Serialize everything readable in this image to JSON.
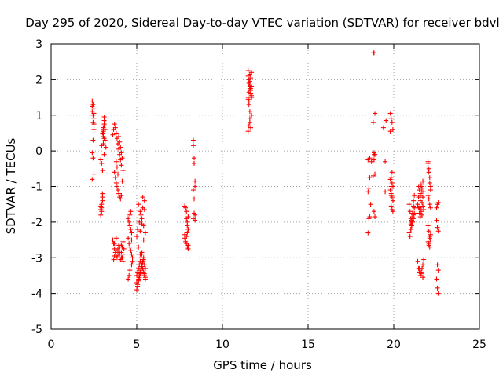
{
  "chart_data": {
    "type": "scatter",
    "title": "Day 295 of 2020, Sidereal Day-to-day VTEC variation (SDTVAR) for receiver bdvl",
    "xlabel": "GPS time / hours",
    "ylabel": "SDTVAR / TECUs",
    "xlim": [
      0,
      25
    ],
    "ylim": [
      -5,
      3
    ],
    "xticks": [
      0,
      5,
      10,
      15,
      20,
      25
    ],
    "yticks": [
      -5,
      -4,
      -3,
      -2,
      -1,
      0,
      1,
      2,
      3
    ],
    "grid": true,
    "marker": "+",
    "marker_color": "#ff0000",
    "series": [
      {
        "name": "SDTVAR",
        "x": [
          2.4,
          2.4,
          2.4,
          2.45,
          2.45,
          2.45,
          2.5,
          2.5,
          2.5,
          2.5,
          2.5,
          2.4,
          2.45,
          2.5,
          2.4,
          2.45,
          2.9,
          2.9,
          2.9,
          2.95,
          2.95,
          2.95,
          3.0,
          3.0,
          3.0,
          3.05,
          3.05,
          3.05,
          3.1,
          3.1,
          3.1,
          2.9,
          2.95,
          3.0,
          3.05,
          3.1,
          3.1,
          3.05,
          3.0,
          2.95,
          3.1,
          3.15,
          3.15,
          3.2,
          3.6,
          3.65,
          3.7,
          3.75,
          3.8,
          3.85,
          3.9,
          3.95,
          4.0,
          4.05,
          4.1,
          3.7,
          3.75,
          3.8,
          3.85,
          3.9,
          3.95,
          4.0,
          4.05,
          4.1,
          4.15,
          4.2,
          4.15,
          4.1,
          4.05,
          4.0,
          3.95,
          3.9,
          3.85,
          3.8,
          3.6,
          3.65,
          3.7,
          3.75,
          3.8,
          3.85,
          3.9,
          3.95,
          4.0,
          4.05,
          4.1,
          4.15,
          4.2,
          4.25,
          4.2,
          4.1,
          4.0,
          3.9,
          3.8,
          3.7,
          3.65,
          3.7,
          3.8,
          3.9,
          4.0,
          4.1,
          4.15,
          4.2,
          4.5,
          4.55,
          4.6,
          4.65,
          4.7,
          4.5,
          4.55,
          4.6,
          4.65,
          4.7,
          4.75,
          4.75,
          4.7,
          4.6,
          4.55,
          4.5,
          4.6,
          4.65,
          4.7,
          5.0,
          5.0,
          5.05,
          5.05,
          5.1,
          5.1,
          5.15,
          5.15,
          5.2,
          5.2,
          5.25,
          5.25,
          5.3,
          5.3,
          5.35,
          5.35,
          5.4,
          5.4,
          5.45,
          5.45,
          5.5,
          5.5,
          5.0,
          5.05,
          5.1,
          5.15,
          5.2,
          5.25,
          5.3,
          5.35,
          5.4,
          5.45,
          5.5,
          5.1,
          5.2,
          5.3,
          5.4,
          5.5,
          5.45,
          5.35,
          5.25,
          5.15,
          5.05,
          5.0,
          5.1,
          5.2,
          5.3,
          5.4,
          5.2,
          5.3,
          5.35,
          5.45,
          7.8,
          7.8,
          7.85,
          7.85,
          7.9,
          7.9,
          7.95,
          7.95,
          8.0,
          8.0,
          7.8,
          7.85,
          7.9,
          7.95,
          8.0,
          7.9,
          7.95,
          8.0,
          8.3,
          8.3,
          8.35,
          8.35,
          8.4,
          8.4,
          8.3,
          8.35,
          8.4,
          8.3,
          8.35,
          8.4,
          11.5,
          11.5,
          11.55,
          11.55,
          11.6,
          11.6,
          11.65,
          11.65,
          11.7,
          11.7,
          11.5,
          11.55,
          11.6,
          11.65,
          11.7,
          11.5,
          11.55,
          11.6,
          11.65,
          11.7,
          11.6,
          11.6,
          11.55,
          11.65,
          11.5,
          11.7,
          11.6,
          11.55,
          11.65,
          11.6,
          18.5,
          18.55,
          18.6,
          18.65,
          18.5,
          18.55,
          18.6,
          18.7,
          18.6,
          18.5,
          18.8,
          18.85,
          18.9,
          18.8,
          18.85,
          18.9,
          18.8,
          18.85,
          18.9,
          18.85,
          18.9,
          18.85,
          19.4,
          19.5,
          19.5,
          19.55,
          19.8,
          19.85,
          19.9,
          19.95,
          19.8,
          19.85,
          19.9,
          19.95,
          19.8,
          19.85,
          19.9,
          19.95,
          19.85,
          19.9,
          19.95,
          19.85,
          19.9,
          19.8,
          19.85,
          20.9,
          20.95,
          21.0,
          21.05,
          21.1,
          21.15,
          21.2,
          20.9,
          20.95,
          21.0,
          21.05,
          21.1,
          21.15,
          21.2,
          21.0,
          21.05,
          21.1,
          21.15,
          21.0,
          21.05,
          21.1,
          21.15,
          21.2,
          21.4,
          21.45,
          21.5,
          21.55,
          21.6,
          21.65,
          21.7,
          21.75,
          21.4,
          21.45,
          21.5,
          21.55,
          21.6,
          21.65,
          21.7,
          21.75,
          21.45,
          21.5,
          21.55,
          21.6,
          21.65,
          21.7,
          21.5,
          21.6,
          21.7,
          21.45,
          21.55,
          21.65,
          21.75,
          21.5,
          21.6,
          21.7,
          21.6,
          21.65,
          21.55,
          22.0,
          22.0,
          22.05,
          22.05,
          22.1,
          22.1,
          22.15,
          22.15,
          22.0,
          22.05,
          22.1,
          22.15,
          22.0,
          22.05,
          22.1,
          22.15,
          22.05,
          22.1,
          22.0,
          22.15,
          22.1,
          22.05,
          22.5,
          22.55,
          22.6,
          22.5,
          22.55,
          22.6,
          22.55,
          22.6,
          22.5,
          22.55,
          22.6
        ],
        "y": [
          1.4,
          1.25,
          1.1,
          1.3,
          1.0,
          0.8,
          1.2,
          0.6,
          0.9,
          1.05,
          0.75,
          -0.05,
          -0.2,
          -0.65,
          -0.8,
          0.3,
          -1.55,
          -1.65,
          -1.8,
          -1.7,
          -1.6,
          -1.5,
          -1.4,
          -1.3,
          -1.2,
          0.2,
          0.4,
          0.55,
          0.7,
          0.85,
          0.95,
          -0.25,
          0.15,
          0.5,
          0.65,
          0.35,
          -0.1,
          0.6,
          -0.55,
          -0.35,
          0.75,
          0.6,
          0.3,
          0.1,
          0.45,
          0.6,
          0.75,
          0.65,
          0.5,
          0.35,
          0.2,
          0.05,
          -0.1,
          -0.25,
          -0.4,
          -0.6,
          -0.75,
          -0.9,
          -1.0,
          -1.1,
          -1.2,
          -1.3,
          -1.35,
          -1.25,
          -0.85,
          -0.55,
          -0.2,
          -0.05,
          0.1,
          0.25,
          0.4,
          -0.65,
          -0.45,
          -0.3,
          -2.5,
          -2.6,
          -2.75,
          -2.85,
          -2.95,
          -3.0,
          -2.8,
          -2.65,
          -2.9,
          -3.05,
          -2.85,
          -2.7,
          -2.55,
          -2.75,
          -3.1,
          -3.0,
          -2.7,
          -2.9,
          -2.8,
          -2.95,
          -3.05,
          -2.6,
          -2.45,
          -2.75,
          -2.85,
          -2.65,
          -3.0,
          -2.9,
          -1.9,
          -2.0,
          -2.1,
          -2.2,
          -2.3,
          -2.45,
          -2.6,
          -2.7,
          -2.8,
          -2.9,
          -3.0,
          -3.1,
          -3.2,
          -3.35,
          -3.5,
          -3.6,
          -1.8,
          -1.7,
          -2.5,
          -3.5,
          -3.7,
          -3.4,
          -3.8,
          -3.3,
          -3.6,
          -3.2,
          -3.5,
          -3.1,
          -3.4,
          -3.0,
          -3.3,
          -2.9,
          -3.2,
          -3.1,
          -3.3,
          -3.0,
          -3.4,
          -3.2,
          -3.5,
          -3.3,
          -3.6,
          -3.9,
          -3.75,
          -3.65,
          -3.55,
          -3.45,
          -3.35,
          -3.25,
          -3.15,
          -3.05,
          -3.45,
          -3.55,
          -1.5,
          -1.7,
          -1.9,
          -2.1,
          -2.3,
          -1.4,
          -1.6,
          -1.8,
          -2.0,
          -2.2,
          -2.4,
          -2.7,
          -2.9,
          -2.85,
          -2.5,
          -2.25,
          -2.05,
          -1.3,
          -1.65,
          -1.55,
          -2.35,
          -1.6,
          -2.5,
          -1.9,
          -2.6,
          -2.1,
          -2.7,
          -2.2,
          -2.75,
          -2.45,
          -2.55,
          -2.4,
          -2.3,
          -2.65,
          -1.7,
          -2.0,
          -1.85,
          0.3,
          0.15,
          -0.2,
          -0.35,
          -0.85,
          -1.0,
          -1.1,
          -1.35,
          -1.8,
          -1.9,
          -1.75,
          -1.95,
          2.25,
          2.1,
          2.0,
          1.9,
          1.85,
          1.75,
          1.7,
          1.6,
          1.55,
          1.5,
          1.45,
          1.65,
          1.8,
          2.05,
          2.2,
          1.5,
          1.4,
          1.95,
          1.6,
          1.8,
          0.9,
          0.8,
          0.7,
          0.65,
          0.55,
          1.0,
          1.1,
          1.3,
          1.75,
          2.15,
          -2.3,
          -1.9,
          -1.85,
          -1.5,
          -1.15,
          -1.05,
          -0.75,
          -0.3,
          -0.2,
          -0.25,
          2.75,
          2.75,
          1.05,
          0.8,
          -0.05,
          -0.1,
          -0.7,
          -1.7,
          -1.85,
          -0.25,
          -0.65,
          -0.1,
          0.65,
          -0.3,
          -1.15,
          0.85,
          1.05,
          0.9,
          0.8,
          0.6,
          0.55,
          -0.75,
          -0.9,
          -1.0,
          -1.1,
          -1.2,
          -1.3,
          -1.4,
          -1.55,
          -1.65,
          -1.7,
          -1.0,
          -0.6,
          -0.8,
          -1.25,
          -1.5,
          -1.7,
          -1.9,
          -2.1,
          -2.0,
          -1.8,
          -1.6,
          -2.3,
          -2.4,
          -2.2,
          -2.0,
          -1.85,
          -1.4,
          -1.25,
          -2.05,
          -1.95,
          -1.75,
          -1.55,
          -2.2,
          -2.1,
          -2.0,
          -1.9,
          -1.75,
          -3.1,
          -3.3,
          -3.4,
          -3.5,
          -3.4,
          -3.3,
          -3.2,
          -3.05,
          -1.5,
          -1.6,
          -1.75,
          -1.85,
          -1.65,
          -1.45,
          -1.3,
          -1.15,
          -1.0,
          -1.1,
          -1.2,
          -0.95,
          -1.05,
          -0.85,
          -1.6,
          -1.7,
          -1.55,
          -1.3,
          -1.4,
          -1.8,
          -1.65,
          -3.3,
          -3.45,
          -3.55,
          -1.0,
          -1.15,
          -1.25,
          -0.3,
          -0.35,
          -0.5,
          -0.6,
          -0.75,
          -0.9,
          -1.0,
          -1.1,
          -1.25,
          -1.35,
          -1.5,
          -1.6,
          -2.1,
          -2.25,
          -2.4,
          -2.5,
          -2.6,
          -2.7,
          -2.55,
          -2.35,
          -2.45,
          -2.65,
          -1.6,
          -1.5,
          -1.45,
          -1.95,
          -2.15,
          -2.25,
          -3.2,
          -3.35,
          -3.6,
          -3.85,
          -4.0
        ]
      }
    ]
  }
}
